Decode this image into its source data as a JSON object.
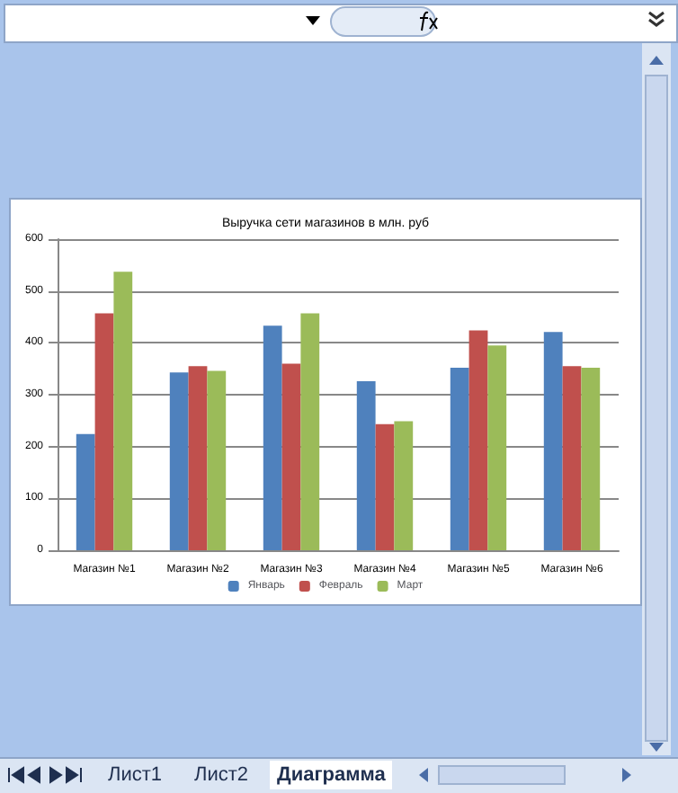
{
  "chart_data": {
    "type": "bar",
    "title": "Выручка сети магазинов в млн. руб",
    "categories": [
      "Магазин №1",
      "Магазин №2",
      "Магазин №3",
      "Магазин №4",
      "Магазин №5",
      "Магазин №6"
    ],
    "series": [
      {
        "name": "Январь",
        "color": "#4f81bd",
        "values": [
          224,
          343,
          433,
          326,
          352,
          421
        ]
      },
      {
        "name": "Февраль",
        "color": "#c0504d",
        "values": [
          457,
          355,
          360,
          243,
          424,
          355
        ]
      },
      {
        "name": "Март",
        "color": "#9bbb59",
        "values": [
          537,
          346,
          457,
          249,
          395,
          352
        ]
      }
    ],
    "ylim": [
      0,
      600
    ],
    "yticks": [
      0,
      100,
      200,
      300,
      400,
      500,
      600
    ],
    "grid": "y",
    "legend": "bottom",
    "annotations": [
      "Лист1",
      "Лист2",
      "Диаграмма"
    ]
  }
}
